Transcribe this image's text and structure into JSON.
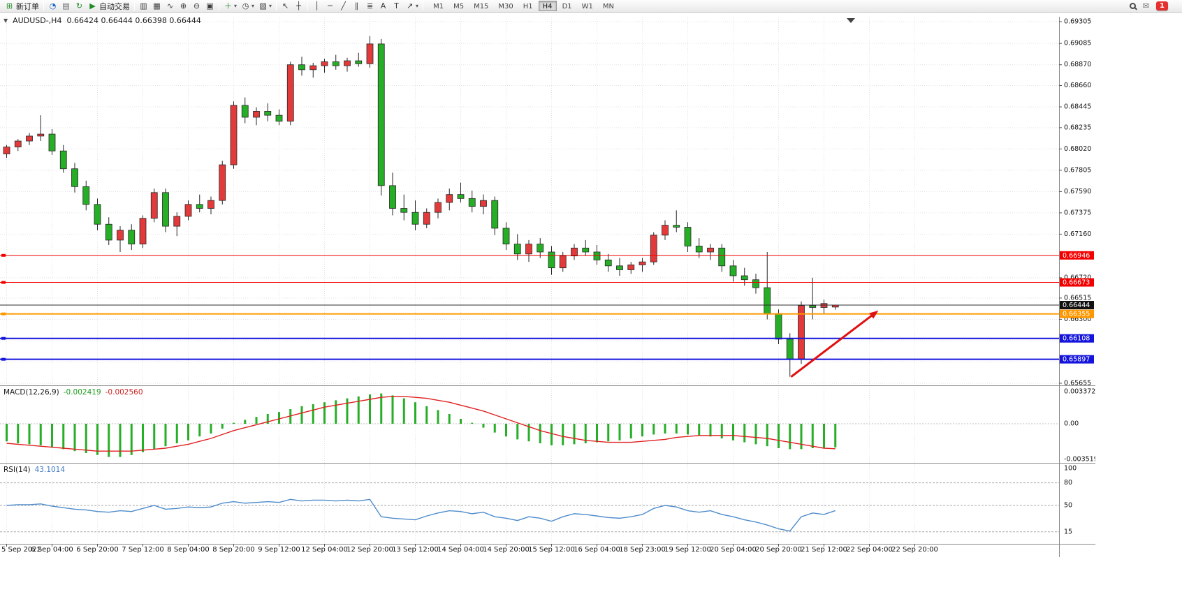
{
  "toolbar": {
    "items": [
      {
        "name": "new-order",
        "icon": "new_order",
        "icon_color": "green",
        "label": "新订单"
      },
      {
        "sep": true
      },
      {
        "name": "market-watch",
        "icon": "market_watch",
        "icon_color": "blue"
      },
      {
        "name": "data-window",
        "icon": "data_window",
        "icon_color": "gray"
      },
      {
        "name": "refresh",
        "icon": "refresh",
        "icon_color": "green"
      },
      {
        "name": "auto-trading",
        "icon": "auto_trading",
        "icon_color": "green",
        "label": "自动交易"
      },
      {
        "sep": true
      },
      {
        "name": "bars-mode",
        "icon": "bars_mode",
        "icon_color": "dark"
      },
      {
        "name": "candles-mode",
        "icon": "candles_mode",
        "icon_color": "dark"
      },
      {
        "name": "line-mode",
        "icon": "line_mode",
        "icon_color": "dark"
      },
      {
        "name": "zoom-in",
        "icon": "zoom_in",
        "icon_color": "dark"
      },
      {
        "name": "zoom-out",
        "icon": "zoom_out",
        "icon_color": "dark"
      },
      {
        "name": "tile-windows",
        "icon": "tile_windows",
        "icon_color": "dark"
      },
      {
        "sep": true
      },
      {
        "name": "indicators",
        "icon": "indicators",
        "icon_color": "green",
        "dropdown": true
      },
      {
        "name": "periods",
        "icon": "periods",
        "icon_color": "dark",
        "dropdown": true
      },
      {
        "name": "templates",
        "icon": "templates",
        "icon_color": "dark",
        "dropdown": true
      },
      {
        "sep": true
      },
      {
        "name": "cursor",
        "icon": "cursor",
        "icon_color": "dark"
      },
      {
        "name": "crosshair",
        "icon": "crosshair",
        "icon_color": "dark"
      },
      {
        "sep": true
      },
      {
        "name": "vertical-line",
        "icon": "vertical_line",
        "icon_color": "dark"
      },
      {
        "name": "horizontal-line",
        "icon": "horizontal_line",
        "icon_color": "dark"
      },
      {
        "name": "trendline",
        "icon": "trendline",
        "icon_color": "dark"
      },
      {
        "name": "equidistant-channel",
        "icon": "channel",
        "icon_color": "dark"
      },
      {
        "name": "fibonacci",
        "icon": "fibonacci",
        "icon_color": "dark"
      },
      {
        "name": "text",
        "icon": "text",
        "icon_color": "dark"
      },
      {
        "name": "text-label",
        "icon": "text_label",
        "icon_color": "dark"
      },
      {
        "name": "arrows",
        "icon": "arrows",
        "icon_color": "dark",
        "dropdown": true
      },
      {
        "sep": true
      }
    ],
    "timeframes": [
      "M1",
      "M5",
      "M15",
      "M30",
      "H1",
      "H4",
      "D1",
      "W1",
      "MN"
    ],
    "active_timeframe": "H4",
    "notification_count": "1"
  },
  "icons": {
    "new_order": "⊞",
    "market_watch": "◔",
    "data_window": "▤",
    "refresh": "↻",
    "auto_trading": "▶",
    "bars_mode": "▥",
    "candles_mode": "▦",
    "line_mode": "∿",
    "zoom_in": "⊕",
    "zoom_out": "⊖",
    "tile_windows": "▣",
    "indicators": "＋",
    "periods": "◷",
    "templates": "▨",
    "cursor": "↖",
    "crosshair": "┼",
    "vertical_line": "│",
    "horizontal_line": "─",
    "trendline": "╱",
    "channel": "∥",
    "fibonacci": "≣",
    "text": "A",
    "text_label": "T",
    "arrows": "↗",
    "dropdown": "▾",
    "one_click": "▼",
    "mail": "✉"
  },
  "chart": {
    "symbol_period": "AUDUSD-,H4",
    "ohlc_text": "0.66424 0.66444 0.66398 0.66444"
  },
  "chart_data": {
    "type": "candlestick",
    "symbol": "AUDUSD-",
    "timeframe": "H4",
    "current_bar": {
      "open": 0.66424,
      "high": 0.66444,
      "low": 0.66398,
      "close": 0.66444
    },
    "price_axis": {
      "top_price": 0.69305,
      "bottom_price": 0.65655,
      "tick_prices": [
        0.69305,
        0.69085,
        0.6887,
        0.6866,
        0.68445,
        0.68235,
        0.6802,
        0.67805,
        0.6759,
        0.67375,
        0.6716,
        0.6672,
        0.66515,
        0.663,
        0.65655
      ],
      "grid_only_prices": [
        0.66085,
        0.6587
      ]
    },
    "time_labels": [
      {
        "i": 0,
        "t": "5 Sep 2022"
      },
      {
        "i": 4,
        "t": "6 Sep 04:00"
      },
      {
        "i": 8,
        "t": "6 Sep 20:00"
      },
      {
        "i": 12,
        "t": "7 Sep 12:00"
      },
      {
        "i": 16,
        "t": "8 Sep 04:00"
      },
      {
        "i": 20,
        "t": "8 Sep 20:00"
      },
      {
        "i": 24,
        "t": "9 Sep 12:00"
      },
      {
        "i": 28,
        "t": "12 Sep 04:00"
      },
      {
        "i": 32,
        "t": "12 Sep 20:00"
      },
      {
        "i": 36,
        "t": "13 Sep 12:00"
      },
      {
        "i": 40,
        "t": "14 Sep 04:00"
      },
      {
        "i": 44,
        "t": "14 Sep 20:00"
      },
      {
        "i": 48,
        "t": "15 Sep 12:00"
      },
      {
        "i": 52,
        "t": "16 Sep 04:00"
      },
      {
        "i": 56,
        "t": "18 Sep 23:00"
      },
      {
        "i": 60,
        "t": "19 Sep 12:00"
      },
      {
        "i": 64,
        "t": "20 Sep 04:00"
      },
      {
        "i": 68,
        "t": "20 Sep 20:00"
      },
      {
        "i": 72,
        "t": "21 Sep 12:00"
      },
      {
        "i": 76,
        "t": "22 Sep 04:00"
      },
      {
        "i": 80,
        "t": "22 Sep 20:00"
      }
    ],
    "candles": [
      [
        0.6797,
        0.6806,
        0.6793,
        0.6804
      ],
      [
        0.6804,
        0.6812,
        0.68,
        0.681
      ],
      [
        0.681,
        0.6818,
        0.6806,
        0.6815
      ],
      [
        0.6815,
        0.6836,
        0.681,
        0.6817
      ],
      [
        0.6817,
        0.6822,
        0.6796,
        0.68
      ],
      [
        0.68,
        0.6806,
        0.6778,
        0.6782
      ],
      [
        0.6782,
        0.6788,
        0.6758,
        0.6764
      ],
      [
        0.6764,
        0.677,
        0.674,
        0.6746
      ],
      [
        0.6746,
        0.6752,
        0.672,
        0.6726
      ],
      [
        0.6726,
        0.6733,
        0.6705,
        0.671
      ],
      [
        0.671,
        0.6724,
        0.6698,
        0.672
      ],
      [
        0.672,
        0.6726,
        0.67,
        0.6706
      ],
      [
        0.6706,
        0.6735,
        0.6702,
        0.6732
      ],
      [
        0.6732,
        0.6762,
        0.6728,
        0.6758
      ],
      [
        0.6758,
        0.6762,
        0.6718,
        0.6724
      ],
      [
        0.6724,
        0.6738,
        0.6714,
        0.6734
      ],
      [
        0.6734,
        0.675,
        0.673,
        0.6746
      ],
      [
        0.6746,
        0.6756,
        0.6738,
        0.6742
      ],
      [
        0.6742,
        0.6754,
        0.6736,
        0.675
      ],
      [
        0.675,
        0.679,
        0.6746,
        0.6786
      ],
      [
        0.6786,
        0.685,
        0.6782,
        0.6846
      ],
      [
        0.6846,
        0.6854,
        0.6828,
        0.6834
      ],
      [
        0.6834,
        0.6844,
        0.6826,
        0.684
      ],
      [
        0.684,
        0.6848,
        0.683,
        0.6836
      ],
      [
        0.6836,
        0.6842,
        0.6826,
        0.683
      ],
      [
        0.683,
        0.689,
        0.6826,
        0.6887
      ],
      [
        0.6887,
        0.6895,
        0.6876,
        0.6882
      ],
      [
        0.6882,
        0.6889,
        0.6874,
        0.6886
      ],
      [
        0.6886,
        0.6893,
        0.6879,
        0.689
      ],
      [
        0.689,
        0.6897,
        0.6882,
        0.6886
      ],
      [
        0.6886,
        0.6894,
        0.688,
        0.6891
      ],
      [
        0.6891,
        0.6899,
        0.6885,
        0.6888
      ],
      [
        0.6888,
        0.6916,
        0.6884,
        0.6908
      ],
      [
        0.6908,
        0.6913,
        0.6755,
        0.6765
      ],
      [
        0.6765,
        0.6778,
        0.6735,
        0.6742
      ],
      [
        0.6742,
        0.6756,
        0.673,
        0.6738
      ],
      [
        0.6738,
        0.675,
        0.672,
        0.6726
      ],
      [
        0.6726,
        0.6742,
        0.6722,
        0.6738
      ],
      [
        0.6738,
        0.6752,
        0.6732,
        0.6748
      ],
      [
        0.6748,
        0.6762,
        0.674,
        0.6756
      ],
      [
        0.6756,
        0.6768,
        0.6748,
        0.6752
      ],
      [
        0.6752,
        0.676,
        0.6738,
        0.6744
      ],
      [
        0.6744,
        0.6756,
        0.6736,
        0.675
      ],
      [
        0.675,
        0.6754,
        0.6715,
        0.6722
      ],
      [
        0.6722,
        0.6728,
        0.67,
        0.6706
      ],
      [
        0.6706,
        0.6716,
        0.669,
        0.6696
      ],
      [
        0.6696,
        0.671,
        0.6688,
        0.6706
      ],
      [
        0.6706,
        0.6712,
        0.6692,
        0.6698
      ],
      [
        0.6698,
        0.6704,
        0.6675,
        0.6682
      ],
      [
        0.6682,
        0.6698,
        0.6678,
        0.6694
      ],
      [
        0.6694,
        0.6706,
        0.669,
        0.6702
      ],
      [
        0.6702,
        0.671,
        0.6694,
        0.6698
      ],
      [
        0.6698,
        0.6705,
        0.6685,
        0.669
      ],
      [
        0.669,
        0.6696,
        0.6678,
        0.6684
      ],
      [
        0.6684,
        0.6692,
        0.6674,
        0.668
      ],
      [
        0.668,
        0.6688,
        0.6676,
        0.6685
      ],
      [
        0.6685,
        0.6692,
        0.6678,
        0.6688
      ],
      [
        0.6688,
        0.6718,
        0.6685,
        0.6715
      ],
      [
        0.6715,
        0.673,
        0.671,
        0.6725
      ],
      [
        0.6725,
        0.674,
        0.6718,
        0.6723
      ],
      [
        0.6723,
        0.6728,
        0.6698,
        0.6704
      ],
      [
        0.6704,
        0.6712,
        0.6692,
        0.6698
      ],
      [
        0.6698,
        0.6706,
        0.669,
        0.6702
      ],
      [
        0.6702,
        0.6706,
        0.6678,
        0.6684
      ],
      [
        0.6684,
        0.669,
        0.6668,
        0.6674
      ],
      [
        0.6674,
        0.6682,
        0.6664,
        0.667
      ],
      [
        0.667,
        0.6676,
        0.6656,
        0.6662
      ],
      [
        0.6662,
        0.6698,
        0.663,
        0.6636
      ],
      [
        0.6636,
        0.664,
        0.6605,
        0.661
      ],
      [
        0.661,
        0.6616,
        0.6572,
        0.659
      ],
      [
        0.659,
        0.6648,
        0.6585,
        0.6644
      ],
      [
        0.6644,
        0.6672,
        0.663,
        0.6642
      ],
      [
        0.6642,
        0.665,
        0.6635,
        0.6646
      ],
      [
        0.66424,
        0.66444,
        0.66398,
        0.66444
      ]
    ],
    "colors": {
      "bull": "#e23a3a",
      "bear": "#27ae27",
      "outline": "#262626",
      "grid": "#e3e3e3",
      "macd_hist": "#27ae27",
      "macd_signal": "#e02020",
      "rsi_line": "#4e8ccb"
    },
    "hlines": [
      {
        "price": 0.66946,
        "color": "#f20000",
        "width": 1,
        "handle": true
      },
      {
        "price": 0.66673,
        "color": "#f20000",
        "width": 1,
        "handle": true
      },
      {
        "price": 0.66444,
        "color": "#2e2e2e",
        "width": 1,
        "handle": false,
        "role": "bid"
      },
      {
        "price": 0.66355,
        "color": "#ff9800",
        "width": 2,
        "handle": true
      },
      {
        "price": 0.66108,
        "color": "#1414dc",
        "width": 2,
        "handle": true
      },
      {
        "price": 0.65897,
        "color": "#1414dc",
        "width": 2,
        "handle": true
      }
    ],
    "arrow": {
      "from_i": 69.1,
      "from_price": 0.6572,
      "to_i": 76.8,
      "to_price": 0.6639,
      "color": "#e01010"
    },
    "macd": {
      "header": "MACD(12,26,9)",
      "value_main": "-0.002419",
      "value_signal": "-0.002560",
      "scale_max_label": "0.003372",
      "scale_zero_label": "0.00",
      "scale_min_label": "-0.003519",
      "histogram": [
        -0.0018,
        -0.002,
        -0.0021,
        -0.0022,
        -0.0024,
        -0.0026,
        -0.0028,
        -0.003,
        -0.0032,
        -0.0034,
        -0.0034,
        -0.0032,
        -0.0029,
        -0.0026,
        -0.0023,
        -0.002,
        -0.0017,
        -0.0013,
        -0.001,
        -0.0005,
        0.0001,
        0.0004,
        0.0007,
        0.001,
        0.0012,
        0.0015,
        0.0018,
        0.002,
        0.0022,
        0.0024,
        0.0026,
        0.0028,
        0.003,
        0.0031,
        0.0029,
        0.0026,
        0.0022,
        0.0018,
        0.0014,
        0.001,
        0.0005,
        0.0001,
        -0.0004,
        -0.0009,
        -0.0013,
        -0.0016,
        -0.0018,
        -0.002,
        -0.0022,
        -0.0022,
        -0.0021,
        -0.002,
        -0.0019,
        -0.0018,
        -0.0017,
        -0.0015,
        -0.0013,
        -0.0011,
        -0.001,
        -0.001,
        -0.0011,
        -0.0012,
        -0.0013,
        -0.0015,
        -0.0017,
        -0.0019,
        -0.0021,
        -0.0023,
        -0.0025,
        -0.0026,
        -0.0026,
        -0.0025,
        -0.00245,
        -0.002419
      ],
      "signal": [
        -0.002,
        -0.0021,
        -0.0022,
        -0.0023,
        -0.0024,
        -0.0025,
        -0.0026,
        -0.0027,
        -0.0028,
        -0.0028,
        -0.0028,
        -0.0028,
        -0.0027,
        -0.0026,
        -0.0025,
        -0.0023,
        -0.0021,
        -0.0018,
        -0.0015,
        -0.0011,
        -0.0007,
        -0.0004,
        -0.0001,
        0.0002,
        0.0005,
        0.0008,
        0.0011,
        0.0014,
        0.0017,
        0.0019,
        0.0021,
        0.0023,
        0.0025,
        0.0027,
        0.0028,
        0.0028,
        0.0027,
        0.0026,
        0.0024,
        0.0022,
        0.0019,
        0.0016,
        0.0013,
        0.0009,
        0.0005,
        0.0001,
        -0.0003,
        -0.0007,
        -0.001,
        -0.0013,
        -0.0015,
        -0.0017,
        -0.0018,
        -0.0019,
        -0.0019,
        -0.0019,
        -0.0018,
        -0.0017,
        -0.0016,
        -0.0014,
        -0.0013,
        -0.0012,
        -0.0012,
        -0.0012,
        -0.0012,
        -0.0013,
        -0.0014,
        -0.0015,
        -0.0017,
        -0.0019,
        -0.0021,
        -0.0023,
        -0.0025,
        -0.00256
      ]
    },
    "rsi": {
      "header": "RSI(14)",
      "value": "43.1014",
      "levels": [
        80,
        50,
        15
      ],
      "scale_labels": [
        {
          "t": "100",
          "v": 100
        },
        {
          "t": "80",
          "v": 80
        },
        {
          "t": "50",
          "v": 50
        },
        {
          "t": "15",
          "v": 15
        }
      ],
      "values": [
        50,
        51,
        51,
        52,
        49,
        47,
        45,
        44,
        42,
        41,
        43,
        42,
        46,
        50,
        45,
        46,
        48,
        47,
        48,
        53,
        55,
        53,
        54,
        55,
        54,
        58,
        56,
        57,
        57,
        56,
        57,
        56,
        58,
        35,
        33,
        32,
        31,
        36,
        40,
        43,
        42,
        39,
        41,
        35,
        33,
        30,
        35,
        33,
        29,
        35,
        39,
        38,
        36,
        34,
        33,
        35,
        38,
        46,
        50,
        48,
        43,
        41,
        43,
        38,
        35,
        31,
        28,
        24,
        19,
        16,
        35,
        40,
        38,
        43.1
      ]
    }
  }
}
